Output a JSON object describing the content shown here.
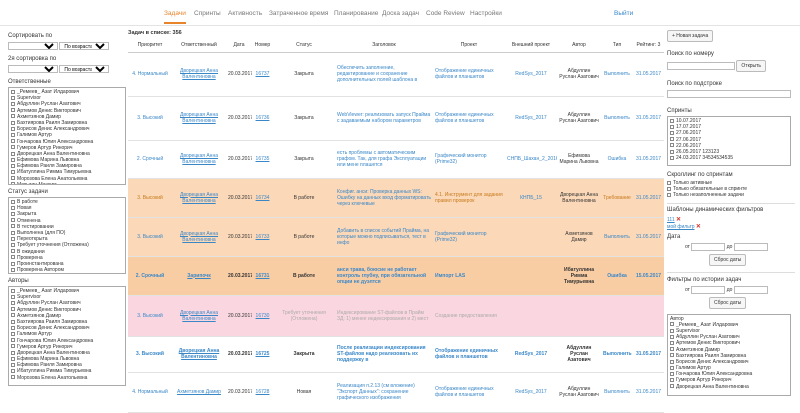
{
  "nav": {
    "tabs": [
      "Задачи",
      "Спринты",
      "Активность",
      "Затраченное время",
      "Планирование",
      "Доска задач",
      "Code Review",
      "Настройки"
    ],
    "exit": "Выйти"
  },
  "left": {
    "sort_label": "Сортировать по",
    "sort_order": "По возрастанию",
    "sort2_label": "2я сортировка по",
    "sort2_order": "По возрастанию",
    "responsible_label": "Ответственные",
    "responsible": [
      "_Ремеев_ Азат Илдарович",
      "Supervisor",
      "Абдуллин Руслан Азатович",
      "Артемов Денис Викторович",
      "Ахметзянов Дамир",
      "Бахтиярова Раиля Замировна",
      "Борисов Денис Александрович",
      "Галимов Артур",
      "Гончарова Юлия Александровна",
      "Гумеров Артур Ринорич",
      "Дворецкая Анна Валентиновна",
      "Ефимова Марина Львовна",
      "Ефимова Раиля Замировна",
      "Ибатуллина Римма Тимурьевна",
      "Морозова Елена Анатольевна",
      "Мотыгин Максим"
    ],
    "status_label": "Статус задачи",
    "statuses": [
      "В работе",
      "Новая",
      "Закрыта",
      "Отменена",
      "В тестировании",
      "Выполнена (для ПО)",
      "Переоткрыта",
      "Требует уточнения (Отложена)",
      "В ожидании",
      "Проверена",
      "Проинстантирована",
      "Проверена Автором"
    ],
    "authors_label": "Авторы",
    "authors": [
      "_Ремеев_ Азат Илдарович",
      "Supervisor",
      "Абдуллин Руслан Азатович",
      "Артемов Денис Викторович",
      "Ахметзянов Дамир",
      "Бахтиярова Раиля Замировна",
      "Борисов Денис Александрович",
      "Галимов Артур",
      "Гончарова Юлия Александровна",
      "Гумеров Артур Ринорич",
      "Дворецкая Анна Валентиновна",
      "Ефимова Марина Львовна",
      "Ефимова Раиля Замировна",
      "Ибатуллина Римма Тимурьевна",
      "Морозова Елена Анатольевна"
    ]
  },
  "center": {
    "count": "Задач в списке: 356",
    "headers": [
      "Приоритет",
      "Ответственный",
      "Дата",
      "Номер",
      "Статус",
      "Заголовок",
      "Проект",
      "Внешний проект",
      "Автор",
      "Тип",
      "Рейтинг: 3"
    ],
    "rows": [
      {
        "prio": "4. Нормальный",
        "resp": "Дворецкая Анна Валентиновна",
        "date": "20.03.2017",
        "num": "16737",
        "status": "Закрыта",
        "title": "Обеспечить заполнение, редактирование и сохранение дополнительных полей шаблона в",
        "project": "Отображение единичных файлов и планшетов",
        "ext": "RedSys_2017",
        "author": "Абдуллин Руслан Азатович",
        "type": "Выполнить",
        "due": "31.05.2017"
      },
      {
        "prio": "3. Высокий",
        "resp": "Дворецкая Анна Валентиновна",
        "date": "20.03.2017",
        "num": "16736",
        "status": "Закрыта",
        "title": "WebViewer: реализовать запуск Прайма с задаваемым набором параметров",
        "project": "Отображение единичных файлов и планшетов",
        "ext": "RedSys_2017",
        "author": "Абдуллин Руслан Азатович",
        "type": "Выполнить",
        "due": "31.05.2017"
      },
      {
        "prio": "2. Срочный",
        "resp": "Дворецкая Анна Валентиновна",
        "date": "20.03.2017",
        "num": "16735",
        "status": "Закрыта",
        "title": "есть проблемы с автоматическим графом. Так, для графа Эксплуатации или мене плашется",
        "project": "Графический монитор (Prime32)",
        "ext": "СНПБ_Шахан_2_2016",
        "author": "Ефимова Марина Львовна",
        "type": "Ошибка",
        "due": "31.05.2017"
      },
      {
        "prio": "3. Высокий",
        "resp": "Дворецкая Анна Валентиновна",
        "date": "20.03.2017",
        "num": "16734",
        "status": "В работе",
        "title": "Конфиг. анси: Проверка данных WS: Ошибку на данных вход форматировать через ключевые",
        "project": "4.1. Инструмент для задания правил проверок",
        "ext": "КНПБ_15",
        "author": "Дворецкая Анна Валентиновна",
        "type": "Требование",
        "due": "31.05.2017"
      },
      {
        "prio": "3. Высокий",
        "resp": "Дворецкая Анна Валентиновна",
        "date": "20.03.2017",
        "num": "16733",
        "status": "В работе",
        "title": "Добавить в список событий Прайма, на которые можно подписываться, тест в инфо",
        "project": "Графический монитор (Prime32)",
        "ext": "",
        "author": "Ахметзянов Дамир",
        "type": "Выполнить",
        "due": "31.05.2017"
      },
      {
        "prio": "2. Срочный",
        "resp": "Зарипочк",
        "date": "20.03.2017",
        "num": "16731",
        "status": "В работе",
        "title": "анси трава, боюсие не работает контроль глубну, при обязательной опции не дуэлтся",
        "project": "Импорт LAS",
        "ext": "",
        "author": "Ибатуллина Римма Тимурьевна",
        "type": "Ошибка",
        "due": "15.05.2017"
      },
      {
        "prio": "3. Высокий",
        "resp": "Дворецкая Анна Валентиновна",
        "date": "20.03.2017",
        "num": "16730",
        "status": "Требует уточнения (Отложена)",
        "title": "Индексирование ST-файлов в Прайм ЗД: 1) менее индексирования и 2) мест",
        "project": "Создание предоставления",
        "ext": "",
        "author": "",
        "type": "",
        "due": ""
      },
      {
        "prio": "3. Высокий",
        "resp": "Дворецкая Анна Валентиновна",
        "date": "20.03.2017",
        "num": "16725",
        "status": "Закрыта",
        "title": "После реализации индексирования ST-файлов надо реализовать их поддержку в",
        "project": "Отображение единичных файлов и планшетов",
        "ext": "RedSys_2017",
        "author": "Абдуллин Руслан Азатович",
        "type": "Выполнить",
        "due": "31.05.2017"
      },
      {
        "prio": "4. Нормальный",
        "resp": "Ахметзянов Дамир",
        "date": "20.03.2017",
        "num": "16728",
        "status": "Новая",
        "title": "Реализация п.2.13 (см вложение) \"Экспорт Данных\": сохранение графического изображения",
        "project": "Отображение единичных файлов и планшетов",
        "ext": "RedSys_2017",
        "author": "Абдуллин Руслан Азатович",
        "type": "Выполнить",
        "due": "31.05.2017"
      }
    ]
  },
  "right": {
    "new_task": "+ Новая задача",
    "search_number": "Поиск по номеру",
    "open": "Открыть",
    "search_substring": "Поиск по подстроке",
    "sprints_label": "Спринты",
    "sprints": [
      "10.07.2017",
      "17.07.2017",
      "27.06.2017",
      "27.06.2017",
      "22.06.2017",
      "26.05.2017 123123",
      "24.03.2017 34534534535"
    ],
    "scroll_label": "Скроллинг по спринтам",
    "scroll_opts": [
      "Только активные",
      "Только обязательные в спринте",
      "Только незаполненные задачи"
    ],
    "templates_label": "Шаблоны динамических фильтров",
    "template1": "111",
    "template2": "мой фильтр",
    "date_label": "Дата",
    "from": "от",
    "to": "до",
    "reset_dates": "Сброс даты",
    "history_label": "Фильтры по истории задач",
    "author_label": "Автор",
    "authors": [
      "_Ремеев_ Азат Илдарович",
      "Supervisor",
      "Абдуллин Руслан Азатович",
      "Артемов Денис Викторович",
      "Ахметзянов Дамир",
      "Бахтиярова Раиля Замировна",
      "Борисов Денис Александрович",
      "Галимов Артур",
      "Гончарова Юлия Александровна",
      "Гумеров Артур Ринорич",
      "Дворецкая Анна Валентиновна"
    ]
  }
}
